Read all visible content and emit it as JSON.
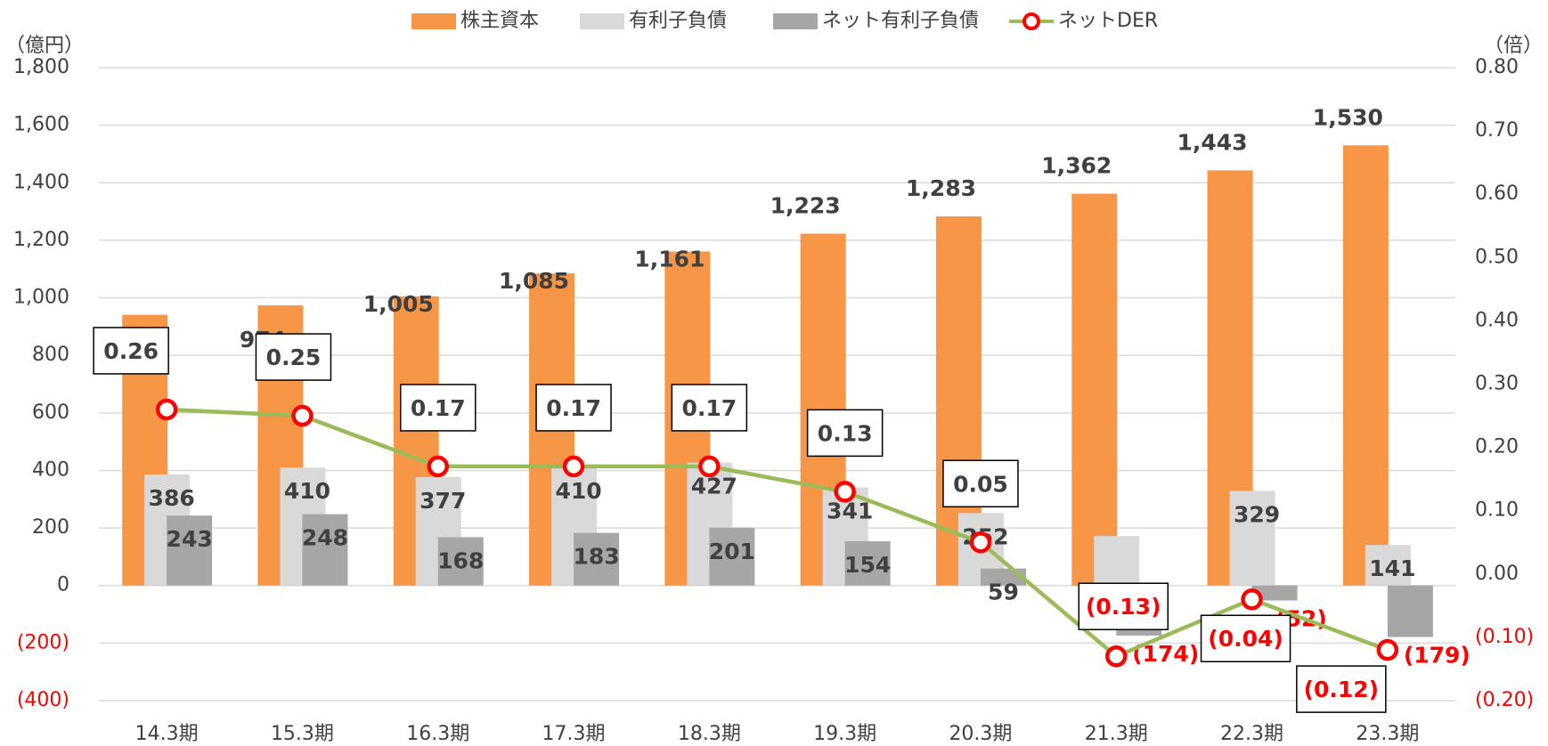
{
  "chart_data": {
    "type": "bar",
    "categories": [
      "14.3期",
      "15.3期",
      "16.3期",
      "17.3期",
      "18.3期",
      "19.3期",
      "20.3期",
      "21.3期",
      "22.3期",
      "23.3期"
    ],
    "series": [
      {
        "name": "株主資本",
        "color": "#f79646",
        "axis": "y",
        "values": [
          941,
          974,
          1005,
          1085,
          1161,
          1223,
          1283,
          1362,
          1443,
          1530
        ],
        "value_labels": [
          "941",
          "974",
          "1,005",
          "1,085",
          "1,161",
          "1,223",
          "1,283",
          "1,362",
          "1,443",
          "1,530"
        ]
      },
      {
        "name": "有利子負債",
        "color": "#d9d9d9",
        "axis": "y",
        "values": [
          386,
          410,
          377,
          410,
          427,
          341,
          252,
          172,
          329,
          141
        ],
        "value_labels": [
          "386",
          "410",
          "377",
          "410",
          "427",
          "341",
          "252",
          null,
          "329",
          "141"
        ]
      },
      {
        "name": "ネット有利子負債",
        "color": "#a6a6a6",
        "axis": "y",
        "values": [
          243,
          248,
          168,
          183,
          201,
          154,
          59,
          -174,
          -52,
          -179
        ],
        "value_labels": [
          "243",
          "248",
          "168",
          "183",
          "201",
          "154",
          "59",
          "(174)",
          "(52)",
          "(179)"
        ]
      },
      {
        "name": "ネットDER",
        "color": "#9bbb59",
        "marker_color": "#ff0000",
        "type": "line",
        "axis": "y2",
        "values": [
          0.26,
          0.25,
          0.17,
          0.17,
          0.17,
          0.13,
          0.05,
          -0.13,
          -0.04,
          -0.12
        ],
        "value_labels": [
          "0.26",
          "0.25",
          "0.17",
          "0.17",
          "0.17",
          "0.13",
          "0.05",
          "(0.13)",
          "(0.04)",
          "(0.12)"
        ]
      }
    ],
    "ylabel": "（億円）",
    "y2label": "（倍）",
    "ylim": [
      -400,
      1800
    ],
    "yticks": [
      {
        "value": -400,
        "label": "(400)"
      },
      {
        "value": -200,
        "label": "(200)"
      },
      0,
      200,
      400,
      600,
      800,
      {
        "value": 1000,
        "label": "1,000"
      },
      {
        "value": 1200,
        "label": "1,200"
      },
      {
        "value": 1400,
        "label": "1,400"
      },
      {
        "value": 1600,
        "label": "1,600"
      },
      {
        "value": 1800,
        "label": "1,800"
      }
    ],
    "y2lim": [
      -0.2,
      0.8
    ],
    "y2ticks": [
      {
        "value": -0.2,
        "label": "(0.20)"
      },
      {
        "value": -0.1,
        "label": "(0.10)"
      },
      {
        "value": 0,
        "label": "0.00"
      },
      {
        "value": 0.1,
        "label": "0.10"
      },
      {
        "value": 0.2,
        "label": "0.20"
      },
      {
        "value": 0.3,
        "label": "0.30"
      },
      {
        "value": 0.4,
        "label": "0.40"
      },
      {
        "value": 0.5,
        "label": "0.50"
      },
      {
        "value": 0.6,
        "label": "0.60"
      },
      {
        "value": 0.7,
        "label": "0.70"
      },
      {
        "value": 0.8,
        "label": "0.80"
      }
    ],
    "negative_color": "#ff0000",
    "grid": true,
    "legend": "top"
  }
}
